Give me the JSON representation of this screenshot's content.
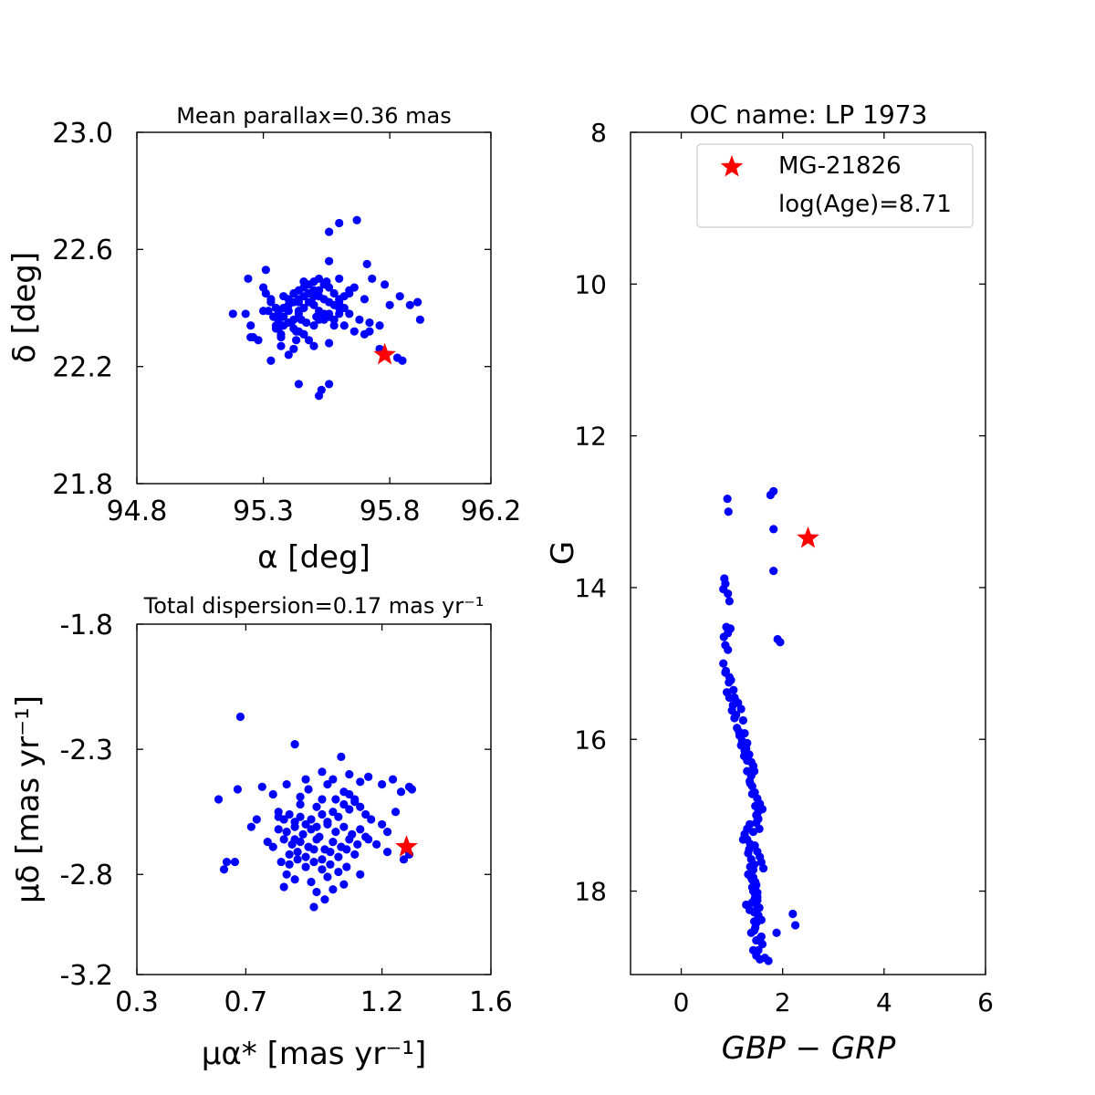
{
  "chart_data": [
    {
      "id": "radec",
      "type": "scatter",
      "title": "Mean parallax=0.36 mas",
      "xlabel": "α [deg]",
      "ylabel": "δ [deg]",
      "xlim": [
        94.8,
        96.2
      ],
      "ylim": [
        21.8,
        23.0
      ],
      "xticks": [
        94.8,
        95.3,
        95.8,
        96.2
      ],
      "xtick_labels": [
        "94.8",
        "95.3",
        "95.8",
        "96.2"
      ],
      "yticks": [
        21.8,
        22.2,
        22.6,
        23.0
      ],
      "ytick_labels": [
        "21.8",
        "22.2",
        "22.6",
        "23.0"
      ],
      "members": {
        "color": "#0000ff",
        "x": [
          95.67,
          95.6,
          95.56,
          95.71,
          95.55,
          95.52,
          95.53,
          95.56,
          95.56,
          95.25,
          95.25,
          95.18,
          95.23,
          95.33,
          95.31,
          95.3,
          95.24,
          95.31,
          95.32,
          95.36,
          95.35,
          95.37,
          95.37,
          95.4,
          95.42,
          95.43,
          95.43,
          95.47,
          95.44,
          95.49,
          95.5,
          95.46,
          95.4,
          95.38,
          95.42,
          95.44,
          95.46,
          95.48,
          95.5,
          95.52,
          95.54,
          95.56,
          95.58,
          95.6,
          95.62,
          95.64,
          95.38,
          95.4,
          95.42,
          95.44,
          95.46,
          95.48,
          95.5,
          95.52,
          95.54,
          95.56,
          95.58,
          95.6,
          95.62,
          95.36,
          95.38,
          95.4,
          95.42,
          95.44,
          95.46,
          95.48,
          95.5,
          95.52,
          95.54,
          95.56,
          95.58,
          95.6,
          95.36,
          95.38,
          95.4,
          95.44,
          95.46,
          95.5,
          95.52,
          95.56,
          95.6,
          95.64,
          95.68,
          95.72,
          95.76,
          95.8,
          95.7,
          95.78,
          95.66,
          95.73,
          95.84,
          95.88,
          95.92,
          95.91,
          95.76,
          95.83,
          95.85,
          95.33,
          95.35,
          95.4,
          95.44,
          95.5,
          95.52,
          95.55,
          95.6,
          95.64,
          95.72,
          95.26,
          95.28,
          95.42,
          95.3,
          95.35,
          95.37,
          95.48,
          95.46,
          95.33,
          95.44,
          95.5,
          95.56,
          95.58,
          95.34,
          95.41,
          95.45,
          95.51,
          95.54,
          95.62,
          95.66,
          95.7
        ],
        "y": [
          22.7,
          22.69,
          22.66,
          22.55,
          22.49,
          22.1,
          22.12,
          22.14,
          22.56,
          22.3,
          22.34,
          22.38,
          22.38,
          22.42,
          22.45,
          22.47,
          22.5,
          22.53,
          22.39,
          22.36,
          22.33,
          22.3,
          22.27,
          22.24,
          22.26,
          22.29,
          22.32,
          22.35,
          22.39,
          22.42,
          22.46,
          22.49,
          22.43,
          22.44,
          22.45,
          22.46,
          22.47,
          22.48,
          22.49,
          22.5,
          22.48,
          22.47,
          22.45,
          22.43,
          22.44,
          22.46,
          22.4,
          22.41,
          22.42,
          22.43,
          22.44,
          22.45,
          22.46,
          22.44,
          22.43,
          22.42,
          22.41,
          22.42,
          22.4,
          22.38,
          22.37,
          22.39,
          22.36,
          22.38,
          22.4,
          22.42,
          22.41,
          22.39,
          22.38,
          22.37,
          22.36,
          22.38,
          22.33,
          22.34,
          22.35,
          22.32,
          22.31,
          22.34,
          22.36,
          22.38,
          22.4,
          22.38,
          22.36,
          22.32,
          22.34,
          22.41,
          22.43,
          22.48,
          22.47,
          22.5,
          22.44,
          22.41,
          22.36,
          22.42,
          22.26,
          22.23,
          22.22,
          22.43,
          22.4,
          22.41,
          22.42,
          22.44,
          22.46,
          22.48,
          22.5,
          22.45,
          22.35,
          22.3,
          22.29,
          22.33,
          22.39,
          22.34,
          22.31,
          22.29,
          22.31,
          22.22,
          22.14,
          22.27,
          22.28,
          22.34,
          22.37,
          22.35,
          22.36,
          22.37,
          22.36,
          22.34,
          22.32,
          22.31
        ]
      },
      "target": {
        "label": "MG-21826",
        "color": "#ff0000",
        "x": 95.78,
        "y": 22.24
      }
    },
    {
      "id": "pm",
      "type": "scatter",
      "title": "Total dispersion=0.17 mas yr⁻¹",
      "xlabel": "μα* [mas yr⁻¹]",
      "ylabel": "μδ [mas yr⁻¹]",
      "xlim": [
        0.3,
        1.6
      ],
      "ylim": [
        -3.2,
        -1.8
      ],
      "xticks": [
        0.3,
        0.7,
        1.2,
        1.6
      ],
      "xtick_labels": [
        "0.3",
        "0.7",
        "1.2",
        "1.6"
      ],
      "yticks": [
        -3.2,
        -2.8,
        -2.3,
        -1.8
      ],
      "ytick_labels": [
        "-3.2",
        "-2.8",
        "-2.3",
        "-1.8"
      ],
      "members": {
        "color": "#0000ff",
        "x": [
          0.68,
          0.88,
          1.05,
          0.63,
          0.62,
          0.6,
          0.67,
          0.66,
          0.76,
          0.8,
          0.85,
          0.92,
          0.98,
          1.02,
          1.08,
          1.12,
          1.15,
          1.2,
          1.24,
          1.3,
          1.31,
          1.27,
          1.25,
          1.2,
          1.22,
          1.18,
          1.3,
          1.28,
          1.22,
          0.82,
          0.84,
          0.86,
          0.88,
          0.9,
          0.92,
          0.94,
          0.96,
          0.98,
          1.0,
          1.02,
          1.04,
          1.06,
          1.08,
          1.1,
          1.12,
          1.14,
          1.16,
          0.82,
          0.85,
          0.88,
          0.91,
          0.94,
          0.97,
          1.0,
          1.03,
          1.06,
          1.09,
          1.12,
          1.15,
          0.84,
          0.87,
          0.9,
          0.93,
          0.96,
          0.99,
          1.02,
          1.05,
          1.08,
          1.11,
          1.14,
          0.86,
          0.89,
          0.92,
          0.95,
          0.98,
          1.01,
          1.04,
          1.07,
          1.1,
          0.8,
          0.83,
          0.86,
          0.89,
          0.92,
          0.95,
          0.98,
          1.01,
          1.04,
          1.07,
          0.78,
          0.85,
          0.88,
          0.94,
          1.0,
          1.06,
          1.12,
          0.96,
          1.02,
          0.84,
          0.9,
          0.98,
          1.06,
          0.93,
          1.0,
          1.08,
          0.74,
          0.72,
          0.9,
          0.96,
          1.03,
          1.1,
          0.99,
          0.95,
          0.82,
          0.88
        ],
        "y": [
          -2.17,
          -2.28,
          -2.33,
          -2.75,
          -2.78,
          -2.5,
          -2.46,
          -2.75,
          -2.45,
          -2.48,
          -2.44,
          -2.42,
          -2.39,
          -2.42,
          -2.4,
          -2.43,
          -2.41,
          -2.44,
          -2.42,
          -2.45,
          -2.46,
          -2.47,
          -2.55,
          -2.6,
          -2.63,
          -2.68,
          -2.72,
          -2.74,
          -2.71,
          -2.55,
          -2.58,
          -2.56,
          -2.59,
          -2.57,
          -2.6,
          -2.58,
          -2.61,
          -2.56,
          -2.59,
          -2.55,
          -2.57,
          -2.52,
          -2.54,
          -2.5,
          -2.53,
          -2.56,
          -2.58,
          -2.62,
          -2.63,
          -2.61,
          -2.64,
          -2.62,
          -2.65,
          -2.6,
          -2.63,
          -2.61,
          -2.64,
          -2.62,
          -2.66,
          -2.66,
          -2.68,
          -2.67,
          -2.69,
          -2.66,
          -2.7,
          -2.67,
          -2.69,
          -2.66,
          -2.68,
          -2.65,
          -2.72,
          -2.71,
          -2.73,
          -2.7,
          -2.74,
          -2.71,
          -2.73,
          -2.7,
          -2.72,
          -2.69,
          -2.75,
          -2.76,
          -2.74,
          -2.77,
          -2.75,
          -2.78,
          -2.76,
          -2.79,
          -2.77,
          -2.67,
          -2.8,
          -2.82,
          -2.83,
          -2.81,
          -2.84,
          -2.8,
          -2.87,
          -2.86,
          -2.85,
          -2.49,
          -2.5,
          -2.47,
          -2.46,
          -2.44,
          -2.48,
          -2.58,
          -2.61,
          -2.52,
          -2.53,
          -2.5,
          -2.51,
          -2.9,
          -2.93,
          -2.57,
          -2.66
        ]
      },
      "target": {
        "label": "MG-21826",
        "color": "#ff0000",
        "x": 1.29,
        "y": -2.69
      }
    },
    {
      "id": "cmd",
      "type": "scatter",
      "title": "OC name: LP 1973",
      "xlabel": "GBP − GRP",
      "ylabel": "G",
      "xlim": [
        -1,
        6
      ],
      "ylim": [
        19.1,
        8
      ],
      "y_inverted": true,
      "xticks": [
        0,
        2,
        4,
        6
      ],
      "xtick_labels": [
        "0",
        "2",
        "4",
        "6"
      ],
      "yticks": [
        8,
        10,
        12,
        14,
        16,
        18
      ],
      "ytick_labels": [
        "8",
        "10",
        "12",
        "14",
        "16",
        "18"
      ],
      "legend": {
        "location": "upper right",
        "entries": [
          "MG-21826",
          "log(Age)=8.71"
        ]
      },
      "members": {
        "color": "#0000ff",
        "x": [
          0.91,
          0.93,
          1.76,
          1.82,
          1.82,
          1.82,
          0.85,
          0.87,
          0.92,
          0.95,
          0.83,
          0.89,
          0.92,
          0.97,
          0.84,
          0.87,
          0.92,
          0.83,
          0.87,
          0.95,
          0.98,
          1.03,
          1.05,
          1.08,
          1.12,
          1.18,
          1.22,
          1.25,
          1.3,
          1.28,
          1.34,
          1.38,
          1.42,
          1.44,
          1.38,
          1.35,
          1.4,
          1.45,
          1.5,
          1.55,
          1.6,
          1.48,
          1.52,
          1.35,
          1.3,
          1.25,
          1.22,
          1.45,
          1.5,
          1.55,
          1.58,
          1.62,
          1.32,
          1.4,
          1.48,
          1.42,
          1.46,
          1.5,
          1.28,
          1.35,
          1.52,
          1.44,
          1.46,
          1.38,
          1.56,
          1.6,
          1.42,
          1.48,
          1.55,
          1.9,
          1.95,
          2.2,
          2.25,
          1.88,
          1.72,
          1.65,
          1.58,
          1.52,
          1.5,
          1.45,
          1.4,
          1.38,
          1.44,
          1.32,
          1.36,
          1.42,
          1.48,
          1.52,
          0.9,
          0.95,
          1.0,
          1.05,
          1.1,
          1.15,
          1.2,
          1.25,
          1.3,
          0.88,
          0.94,
          1.02,
          1.08,
          1.14,
          1.18,
          1.24,
          1.3,
          1.36,
          1.4,
          1.46,
          1.5,
          1.54,
          1.3,
          1.34,
          1.38,
          1.42,
          1.46,
          1.5,
          1.4,
          1.44,
          1.48,
          1.36,
          1.42,
          1.46,
          1.5,
          1.54,
          1.58,
          1.44,
          1.48,
          1.52
        ],
        "y": [
          12.83,
          13.0,
          12.78,
          12.73,
          13.23,
          13.78,
          13.88,
          13.95,
          14.08,
          14.18,
          14.02,
          14.52,
          14.6,
          14.54,
          14.65,
          14.76,
          14.82,
          15.0,
          15.12,
          15.18,
          15.22,
          15.35,
          15.45,
          15.5,
          15.52,
          15.6,
          15.75,
          15.92,
          16.05,
          16.12,
          16.2,
          16.3,
          16.35,
          16.42,
          16.48,
          16.55,
          16.62,
          16.7,
          16.78,
          16.85,
          16.92,
          17.0,
          17.05,
          17.12,
          17.18,
          17.25,
          17.32,
          17.4,
          17.48,
          17.55,
          17.62,
          17.7,
          17.78,
          17.85,
          17.92,
          18.0,
          18.05,
          18.12,
          18.18,
          18.25,
          18.32,
          18.4,
          18.48,
          18.55,
          18.62,
          18.7,
          18.78,
          18.85,
          18.9,
          14.68,
          14.72,
          18.3,
          18.45,
          18.55,
          18.92,
          18.88,
          18.6,
          18.35,
          18.2,
          18.1,
          17.95,
          17.82,
          17.65,
          17.5,
          17.38,
          17.22,
          17.1,
          16.95,
          15.38,
          15.45,
          15.62,
          15.72,
          15.85,
          15.95,
          16.02,
          16.15,
          16.28,
          15.1,
          15.25,
          15.55,
          15.68,
          15.9,
          16.08,
          16.22,
          16.42,
          16.58,
          16.72,
          16.88,
          17.02,
          17.18,
          17.32,
          17.45,
          17.58,
          17.72,
          17.88,
          18.02,
          18.15,
          18.28,
          18.42,
          17.68,
          17.82,
          17.95,
          18.08,
          18.22,
          18.38,
          18.52,
          18.65,
          18.78
        ]
      },
      "target": {
        "label": "MG-21826",
        "color": "#ff0000",
        "x": 2.5,
        "y": 13.35
      }
    }
  ]
}
